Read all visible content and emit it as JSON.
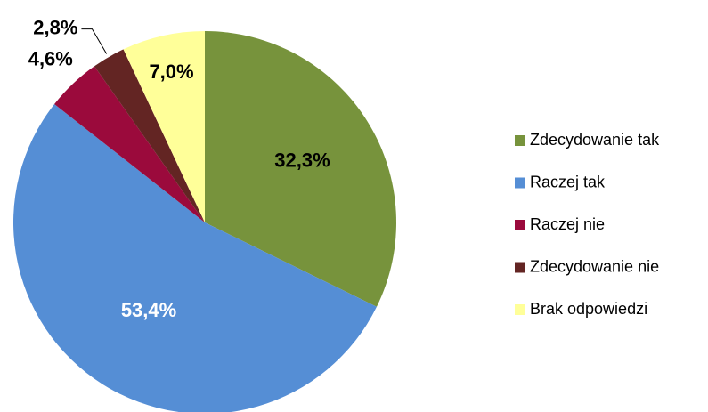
{
  "chart_data": {
    "type": "pie",
    "categories": [
      "Zdecydowanie tak",
      "Raczej tak",
      "Raczej nie",
      "Zdecydowanie nie",
      "Brak odpowiedzi"
    ],
    "values": [
      32.3,
      53.4,
      4.6,
      2.8,
      7.0
    ],
    "value_labels": [
      "32,3%",
      "53,4%",
      "4,6%",
      "2,8%",
      "7,0%"
    ],
    "colors": [
      "#77933c",
      "#558ed5",
      "#9b0a3c",
      "#632523",
      "#ffff99"
    ],
    "legend": "right"
  }
}
